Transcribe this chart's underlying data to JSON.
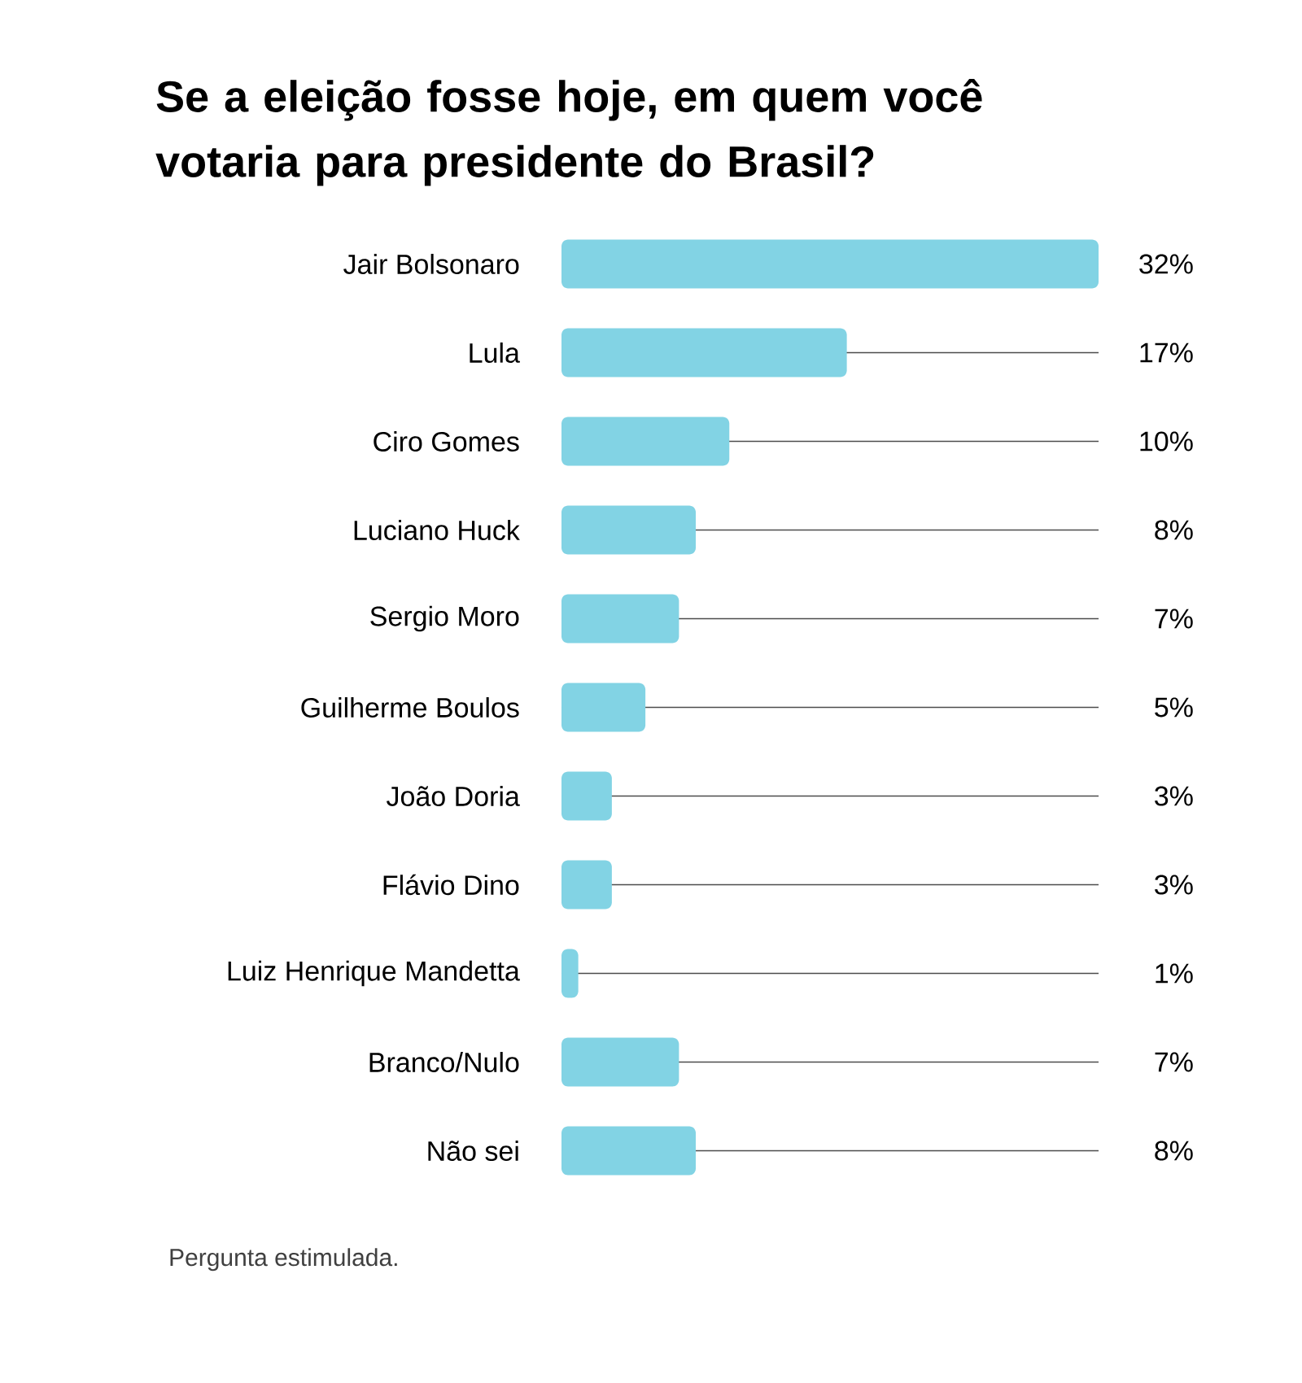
{
  "chart_data": {
    "type": "bar",
    "orientation": "horizontal",
    "title": "Se a eleição fosse hoje, em quem você votaria para presidente do Brasil?",
    "categories": [
      "Jair Bolsonaro",
      "Lula",
      "Ciro Gomes",
      "Luciano Huck",
      "Sergio Moro",
      "Guilherme Boulos",
      "João Doria",
      "Flávio Dino",
      "Luiz Henrique Mandetta",
      "Branco/Nulo",
      "Não sei"
    ],
    "values": [
      32,
      17,
      10,
      8,
      7,
      5,
      3,
      3,
      1,
      7,
      8
    ],
    "value_labels": [
      "32%",
      "17%",
      "10%",
      "8%",
      "7%",
      "5%",
      "3%",
      "3%",
      "1%",
      "7%",
      "8%"
    ],
    "color": "#82d3e4",
    "grid": "y",
    "annotations": [
      "Pergunta estimulada."
    ]
  }
}
